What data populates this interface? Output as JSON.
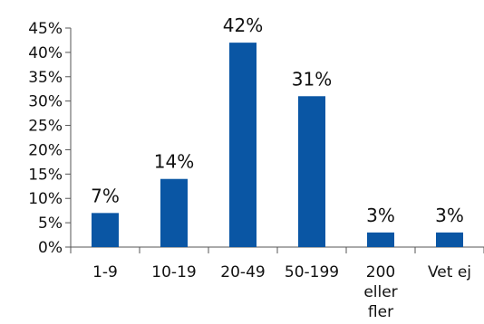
{
  "chart_data": {
    "type": "bar",
    "categories": [
      "1-9",
      "10-19",
      "20-49",
      "50-199",
      "200 eller fler",
      "Vet ej"
    ],
    "category_lines": [
      [
        "1-9"
      ],
      [
        "10-19"
      ],
      [
        "20-49"
      ],
      [
        "50-199"
      ],
      [
        "200",
        "eller",
        "fler"
      ],
      [
        "Vet ej"
      ]
    ],
    "values": [
      7,
      14,
      42,
      31,
      3,
      3
    ],
    "data_labels": [
      "7%",
      "14%",
      "42%",
      "31%",
      "3%",
      "3%"
    ],
    "title": "",
    "xlabel": "",
    "ylabel": "",
    "ylim": [
      0,
      45
    ],
    "yticks": [
      0,
      5,
      10,
      15,
      20,
      25,
      30,
      35,
      40,
      45
    ],
    "ytick_labels": [
      "0%",
      "5%",
      "10%",
      "15%",
      "20%",
      "25%",
      "30%",
      "35%",
      "40%",
      "45%"
    ],
    "grid": false,
    "legend": "none",
    "bar_color": "#0a56a4"
  }
}
